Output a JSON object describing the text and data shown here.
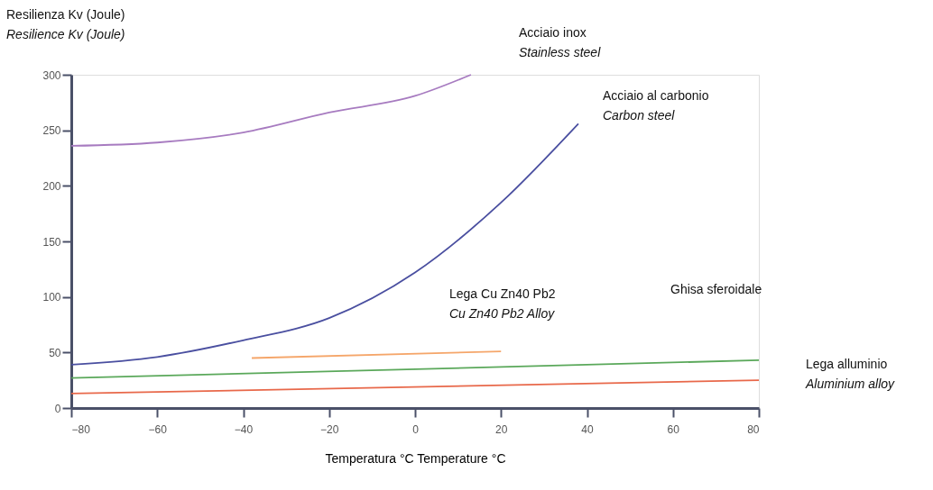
{
  "chart_data": {
    "type": "line",
    "xlabel": "Temperatura °C  Temperature °C",
    "ylabel": "Resilienza Kv (Joule)\nResilience Kv (Joule)",
    "xlim": [
      -80,
      80
    ],
    "xticks": [
      -80,
      -60,
      -40,
      -20,
      0,
      20,
      40,
      60,
      80
    ],
    "ylim": [
      0,
      300
    ],
    "yticks": [
      0,
      50,
      100,
      150,
      200,
      250,
      300
    ],
    "grid": false,
    "marker": "none",
    "line_style": "solid",
    "series": [
      {
        "color": "#a77bc0",
        "x": [
          -80,
          -60,
          -40,
          -20,
          0,
          13
        ],
        "values": [
          236,
          239,
          248,
          266,
          281,
          300
        ]
      },
      {
        "color": "#4a4fa0",
        "x": [
          -80,
          -60,
          -40,
          -20,
          0,
          20,
          38
        ],
        "values": [
          39,
          46,
          61,
          81,
          122,
          185,
          256
        ]
      },
      {
        "color": "#f5a66a",
        "x": [
          -38,
          20
        ],
        "values": [
          45,
          51
        ]
      },
      {
        "color": "#5aa85a",
        "x": [
          -80,
          80
        ],
        "values": [
          27,
          43
        ]
      },
      {
        "color": "#e8684a",
        "x": [
          -80,
          80
        ],
        "values": [
          13,
          25
        ]
      }
    ],
    "annotations": [
      "Acciaio inox\nStainless steel",
      "Acciaio al carbonio\nCarbon steel",
      "Lega Cu Zn40 Pb2\nCu Zn40 Pb2 Alloy",
      "Ghisa sferoidale",
      "Lega alluminio\nAluminium alloy"
    ]
  }
}
